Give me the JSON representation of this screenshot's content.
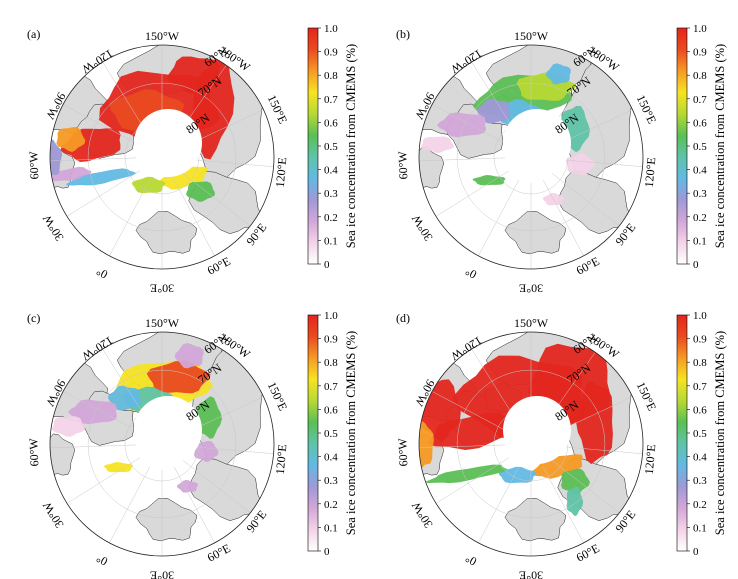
{
  "panels": [
    {
      "label": "(a)",
      "variant": "a"
    },
    {
      "label": "(b)",
      "variant": "b"
    },
    {
      "label": "(c)",
      "variant": "c"
    },
    {
      "label": "(d)",
      "variant": "d"
    }
  ],
  "longitude_labels": [
    "150°W",
    "180°W",
    "150°E",
    "120°E",
    "90°E",
    "60°E",
    "30°E",
    "0°",
    "30°W",
    "60°W",
    "90°W",
    "120°W"
  ],
  "latitude_labels": [
    "60°N",
    "70°N",
    "80°N"
  ],
  "colorbar": {
    "title": "Sea ice concentration from CMEMS (%)",
    "ticks": [
      "1.0",
      "0.9",
      "0.8",
      "0.7",
      "0.6",
      "0.5",
      "0.4",
      "0.3",
      "0.2",
      "0.1",
      "0"
    ],
    "colors": [
      "#ffffff",
      "#f3d3e8",
      "#d2a7d8",
      "#9f99d6",
      "#62b9e4",
      "#5fc3a8",
      "#5bbf55",
      "#b7d933",
      "#f7e322",
      "#f59a24",
      "#ea4a21",
      "#e3261d"
    ]
  },
  "colors": {
    "land": "#d9d9d9",
    "ocean": "#ffffff",
    "outline": "#222222",
    "grid": "#c8c8c8"
  }
}
